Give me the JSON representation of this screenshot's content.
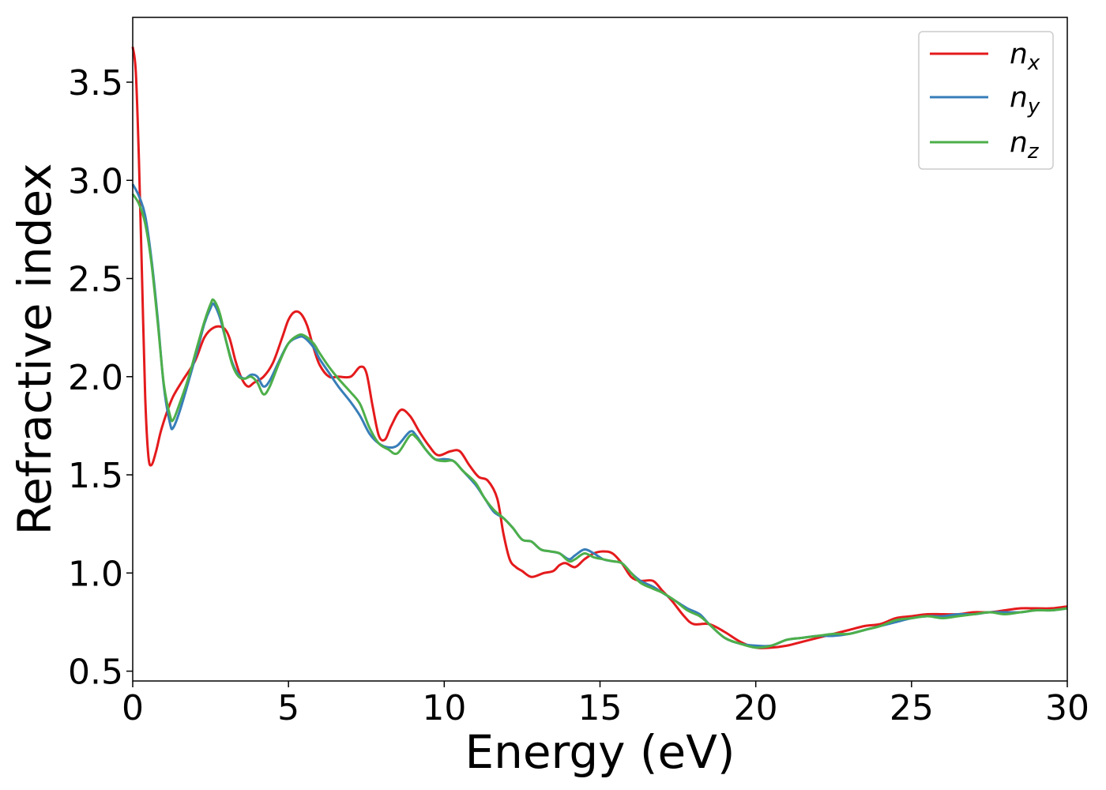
{
  "chart_data": {
    "type": "line",
    "title": "",
    "xlabel": "Energy (eV)",
    "ylabel": "Refractive index",
    "xlim": [
      0,
      30
    ],
    "ylim": [
      0.45,
      3.83
    ],
    "xticks": [
      0,
      5,
      10,
      15,
      20,
      25,
      30
    ],
    "yticks": [
      0.5,
      1.0,
      1.5,
      2.0,
      2.5,
      3.0,
      3.5
    ],
    "xtick_labels": [
      "0",
      "5",
      "10",
      "15",
      "20",
      "25",
      "30"
    ],
    "ytick_labels": [
      "0.5",
      "1.0",
      "1.5",
      "2.0",
      "2.5",
      "3.0",
      "3.5"
    ],
    "grid": false,
    "legend": "top-right",
    "series": [
      {
        "name": "n",
        "subscript": "x",
        "color": "#e41a1c",
        "points": [
          [
            0,
            3.68
          ],
          [
            0.1,
            3.55
          ],
          [
            0.2,
            3.1
          ],
          [
            0.3,
            2.5
          ],
          [
            0.4,
            1.9
          ],
          [
            0.5,
            1.6
          ],
          [
            0.6,
            1.55
          ],
          [
            0.75,
            1.62
          ],
          [
            0.9,
            1.72
          ],
          [
            1.1,
            1.82
          ],
          [
            1.3,
            1.9
          ],
          [
            1.6,
            1.98
          ],
          [
            2.0,
            2.08
          ],
          [
            2.3,
            2.2
          ],
          [
            2.6,
            2.25
          ],
          [
            2.9,
            2.25
          ],
          [
            3.1,
            2.2
          ],
          [
            3.3,
            2.08
          ],
          [
            3.5,
            1.99
          ],
          [
            3.7,
            1.95
          ],
          [
            3.9,
            1.97
          ],
          [
            4.2,
            2.0
          ],
          [
            4.5,
            2.07
          ],
          [
            4.8,
            2.2
          ],
          [
            5.0,
            2.29
          ],
          [
            5.2,
            2.33
          ],
          [
            5.4,
            2.32
          ],
          [
            5.6,
            2.26
          ],
          [
            5.8,
            2.15
          ],
          [
            6.0,
            2.06
          ],
          [
            6.3,
            2.0
          ],
          [
            6.6,
            2.0
          ],
          [
            7.0,
            2.0
          ],
          [
            7.3,
            2.05
          ],
          [
            7.5,
            2.02
          ],
          [
            7.7,
            1.85
          ],
          [
            7.9,
            1.7
          ],
          [
            8.1,
            1.68
          ],
          [
            8.3,
            1.75
          ],
          [
            8.6,
            1.83
          ],
          [
            8.9,
            1.8
          ],
          [
            9.2,
            1.72
          ],
          [
            9.5,
            1.65
          ],
          [
            9.8,
            1.6
          ],
          [
            10.2,
            1.62
          ],
          [
            10.5,
            1.62
          ],
          [
            10.8,
            1.55
          ],
          [
            11.1,
            1.49
          ],
          [
            11.4,
            1.47
          ],
          [
            11.7,
            1.38
          ],
          [
            11.9,
            1.2
          ],
          [
            12.1,
            1.07
          ],
          [
            12.3,
            1.03
          ],
          [
            12.5,
            1.01
          ],
          [
            12.8,
            0.98
          ],
          [
            13.2,
            1.0
          ],
          [
            13.5,
            1.01
          ],
          [
            13.7,
            1.04
          ],
          [
            13.9,
            1.05
          ],
          [
            14.2,
            1.03
          ],
          [
            14.5,
            1.07
          ],
          [
            14.8,
            1.1
          ],
          [
            15.1,
            1.11
          ],
          [
            15.4,
            1.1
          ],
          [
            15.7,
            1.05
          ],
          [
            16.0,
            0.98
          ],
          [
            16.3,
            0.96
          ],
          [
            16.7,
            0.96
          ],
          [
            17.0,
            0.91
          ],
          [
            17.3,
            0.86
          ],
          [
            17.7,
            0.78
          ],
          [
            18.0,
            0.74
          ],
          [
            18.5,
            0.74
          ],
          [
            19.0,
            0.7
          ],
          [
            19.5,
            0.65
          ],
          [
            20.0,
            0.62
          ],
          [
            20.5,
            0.62
          ],
          [
            21.0,
            0.63
          ],
          [
            21.5,
            0.65
          ],
          [
            22.0,
            0.67
          ],
          [
            22.5,
            0.69
          ],
          [
            23.0,
            0.71
          ],
          [
            23.5,
            0.73
          ],
          [
            24.0,
            0.74
          ],
          [
            24.5,
            0.77
          ],
          [
            25.0,
            0.78
          ],
          [
            25.5,
            0.79
          ],
          [
            26.0,
            0.79
          ],
          [
            26.5,
            0.79
          ],
          [
            27.0,
            0.8
          ],
          [
            27.5,
            0.8
          ],
          [
            28.0,
            0.81
          ],
          [
            28.5,
            0.82
          ],
          [
            29.0,
            0.82
          ],
          [
            29.5,
            0.82
          ],
          [
            30.0,
            0.83
          ]
        ]
      },
      {
        "name": "n",
        "subscript": "y",
        "color": "#377eb8",
        "points": [
          [
            0,
            2.98
          ],
          [
            0.2,
            2.92
          ],
          [
            0.4,
            2.82
          ],
          [
            0.6,
            2.6
          ],
          [
            0.8,
            2.3
          ],
          [
            1.0,
            1.95
          ],
          [
            1.2,
            1.76
          ],
          [
            1.3,
            1.74
          ],
          [
            1.5,
            1.82
          ],
          [
            1.8,
            1.98
          ],
          [
            2.1,
            2.15
          ],
          [
            2.3,
            2.27
          ],
          [
            2.5,
            2.35
          ],
          [
            2.6,
            2.37
          ],
          [
            2.8,
            2.3
          ],
          [
            3.0,
            2.18
          ],
          [
            3.2,
            2.07
          ],
          [
            3.4,
            2.01
          ],
          [
            3.6,
            1.99
          ],
          [
            3.8,
            2.01
          ],
          [
            4.0,
            2.0
          ],
          [
            4.2,
            1.95
          ],
          [
            4.4,
            1.98
          ],
          [
            4.7,
            2.08
          ],
          [
            5.0,
            2.17
          ],
          [
            5.3,
            2.2
          ],
          [
            5.5,
            2.2
          ],
          [
            5.8,
            2.15
          ],
          [
            6.0,
            2.09
          ],
          [
            6.3,
            2.02
          ],
          [
            6.6,
            1.95
          ],
          [
            7.0,
            1.87
          ],
          [
            7.3,
            1.8
          ],
          [
            7.6,
            1.71
          ],
          [
            7.9,
            1.66
          ],
          [
            8.2,
            1.64
          ],
          [
            8.5,
            1.65
          ],
          [
            8.9,
            1.72
          ],
          [
            9.1,
            1.7
          ],
          [
            9.4,
            1.63
          ],
          [
            9.7,
            1.58
          ],
          [
            10.0,
            1.58
          ],
          [
            10.3,
            1.57
          ],
          [
            10.6,
            1.52
          ],
          [
            11.0,
            1.45
          ],
          [
            11.3,
            1.38
          ],
          [
            11.6,
            1.31
          ],
          [
            11.9,
            1.28
          ],
          [
            12.2,
            1.23
          ],
          [
            12.5,
            1.17
          ],
          [
            12.8,
            1.16
          ],
          [
            13.1,
            1.12
          ],
          [
            13.4,
            1.11
          ],
          [
            13.7,
            1.1
          ],
          [
            14.0,
            1.07
          ],
          [
            14.2,
            1.09
          ],
          [
            14.5,
            1.12
          ],
          [
            14.8,
            1.1
          ],
          [
            15.1,
            1.07
          ],
          [
            15.4,
            1.06
          ],
          [
            15.7,
            1.05
          ],
          [
            16.0,
            1.0
          ],
          [
            16.3,
            0.96
          ],
          [
            16.7,
            0.93
          ],
          [
            17.0,
            0.9
          ],
          [
            17.4,
            0.86
          ],
          [
            17.8,
            0.82
          ],
          [
            18.2,
            0.79
          ],
          [
            18.5,
            0.74
          ],
          [
            19.0,
            0.67
          ],
          [
            19.5,
            0.64
          ],
          [
            20.0,
            0.63
          ],
          [
            20.5,
            0.63
          ],
          [
            21.0,
            0.66
          ],
          [
            21.5,
            0.67
          ],
          [
            22.0,
            0.68
          ],
          [
            22.5,
            0.68
          ],
          [
            23.0,
            0.69
          ],
          [
            23.5,
            0.71
          ],
          [
            24.0,
            0.73
          ],
          [
            24.5,
            0.75
          ],
          [
            25.0,
            0.77
          ],
          [
            25.5,
            0.78
          ],
          [
            26.0,
            0.78
          ],
          [
            26.5,
            0.79
          ],
          [
            27.0,
            0.79
          ],
          [
            27.5,
            0.8
          ],
          [
            28.0,
            0.8
          ],
          [
            28.5,
            0.8
          ],
          [
            29.0,
            0.81
          ],
          [
            29.5,
            0.81
          ],
          [
            30.0,
            0.82
          ]
        ]
      },
      {
        "name": "n",
        "subscript": "z",
        "color": "#4daf4a",
        "points": [
          [
            0,
            2.93
          ],
          [
            0.2,
            2.88
          ],
          [
            0.4,
            2.78
          ],
          [
            0.6,
            2.58
          ],
          [
            0.8,
            2.28
          ],
          [
            1.0,
            1.96
          ],
          [
            1.2,
            1.8
          ],
          [
            1.3,
            1.78
          ],
          [
            1.5,
            1.86
          ],
          [
            1.8,
            2.0
          ],
          [
            2.1,
            2.17
          ],
          [
            2.3,
            2.28
          ],
          [
            2.5,
            2.37
          ],
          [
            2.6,
            2.39
          ],
          [
            2.8,
            2.32
          ],
          [
            3.0,
            2.18
          ],
          [
            3.2,
            2.06
          ],
          [
            3.4,
            2.0
          ],
          [
            3.6,
            1.99
          ],
          [
            3.8,
            2.0
          ],
          [
            4.0,
            1.97
          ],
          [
            4.2,
            1.91
          ],
          [
            4.4,
            1.95
          ],
          [
            4.7,
            2.07
          ],
          [
            5.0,
            2.17
          ],
          [
            5.3,
            2.21
          ],
          [
            5.5,
            2.21
          ],
          [
            5.8,
            2.17
          ],
          [
            6.0,
            2.12
          ],
          [
            6.3,
            2.05
          ],
          [
            6.6,
            1.99
          ],
          [
            7.0,
            1.92
          ],
          [
            7.3,
            1.86
          ],
          [
            7.6,
            1.74
          ],
          [
            7.9,
            1.66
          ],
          [
            8.2,
            1.63
          ],
          [
            8.5,
            1.61
          ],
          [
            8.9,
            1.7
          ],
          [
            9.1,
            1.69
          ],
          [
            9.4,
            1.63
          ],
          [
            9.7,
            1.58
          ],
          [
            10.0,
            1.57
          ],
          [
            10.3,
            1.57
          ],
          [
            10.6,
            1.52
          ],
          [
            11.0,
            1.46
          ],
          [
            11.3,
            1.38
          ],
          [
            11.6,
            1.32
          ],
          [
            11.9,
            1.28
          ],
          [
            12.2,
            1.23
          ],
          [
            12.5,
            1.17
          ],
          [
            12.8,
            1.16
          ],
          [
            13.1,
            1.12
          ],
          [
            13.4,
            1.11
          ],
          [
            13.7,
            1.1
          ],
          [
            14.0,
            1.06
          ],
          [
            14.2,
            1.07
          ],
          [
            14.5,
            1.1
          ],
          [
            14.8,
            1.08
          ],
          [
            15.1,
            1.07
          ],
          [
            15.4,
            1.06
          ],
          [
            15.7,
            1.05
          ],
          [
            16.0,
            1.0
          ],
          [
            16.3,
            0.95
          ],
          [
            16.7,
            0.92
          ],
          [
            17.0,
            0.9
          ],
          [
            17.4,
            0.86
          ],
          [
            17.8,
            0.81
          ],
          [
            18.2,
            0.78
          ],
          [
            18.5,
            0.74
          ],
          [
            19.0,
            0.67
          ],
          [
            19.5,
            0.64
          ],
          [
            20.0,
            0.62
          ],
          [
            20.5,
            0.63
          ],
          [
            21.0,
            0.66
          ],
          [
            21.5,
            0.67
          ],
          [
            22.0,
            0.68
          ],
          [
            22.5,
            0.69
          ],
          [
            23.0,
            0.69
          ],
          [
            23.5,
            0.71
          ],
          [
            24.0,
            0.73
          ],
          [
            24.5,
            0.76
          ],
          [
            25.0,
            0.77
          ],
          [
            25.5,
            0.78
          ],
          [
            26.0,
            0.77
          ],
          [
            26.5,
            0.78
          ],
          [
            27.0,
            0.79
          ],
          [
            27.5,
            0.8
          ],
          [
            28.0,
            0.79
          ],
          [
            28.5,
            0.8
          ],
          [
            29.0,
            0.81
          ],
          [
            29.5,
            0.81
          ],
          [
            30.0,
            0.82
          ]
        ]
      }
    ]
  }
}
